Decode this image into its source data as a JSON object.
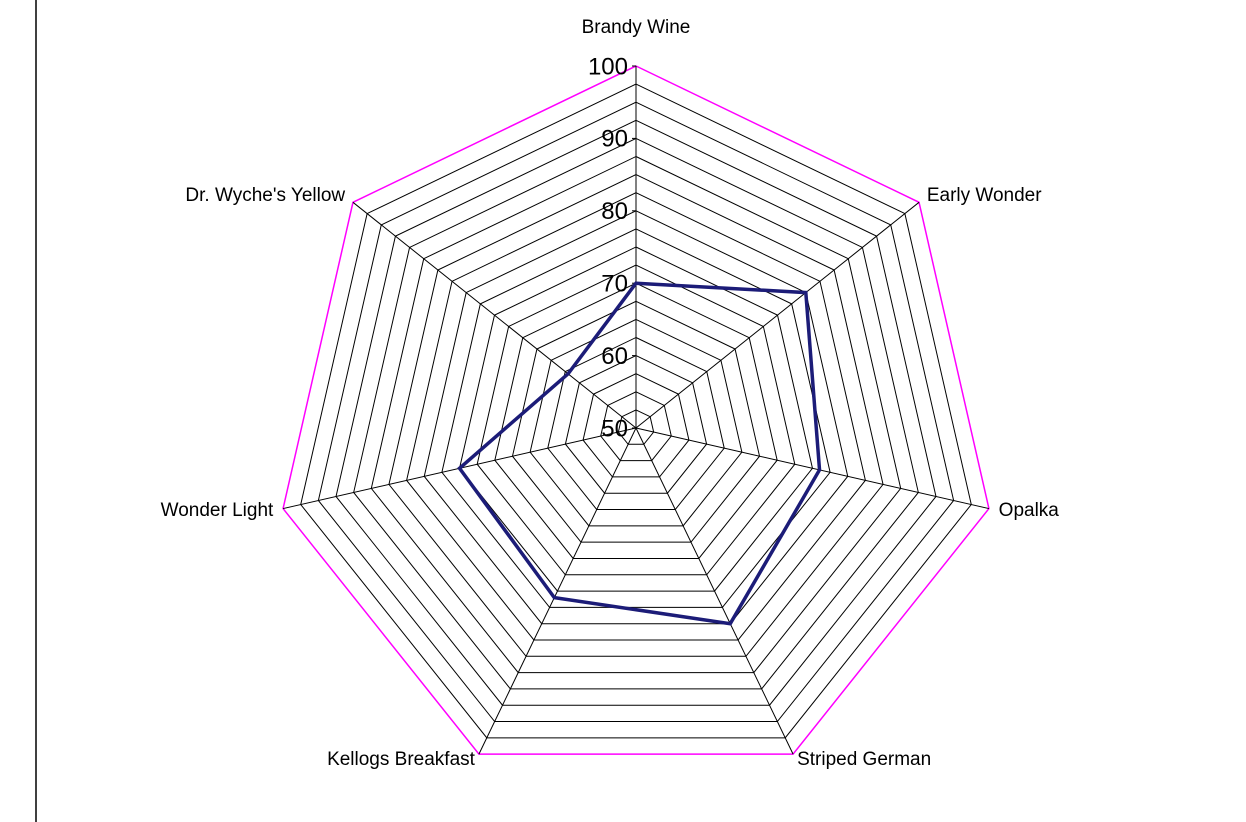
{
  "chart_data": {
    "type": "radar",
    "categories": [
      "Brandy Wine",
      "Early Wonder",
      "Opalka",
      "Striped German",
      "Kellogs Breakfast",
      "Wonder Light",
      "Dr. Wyche's Yellow"
    ],
    "values": [
      70,
      80,
      76,
      80,
      76,
      75,
      62
    ],
    "color": "#1c1c78",
    "outer_color": "#ff00ff",
    "ylim": [
      50,
      100
    ],
    "yticks": [
      50,
      60,
      70,
      80,
      90,
      100
    ],
    "grid": true,
    "minor_grid_step": 2.5
  }
}
